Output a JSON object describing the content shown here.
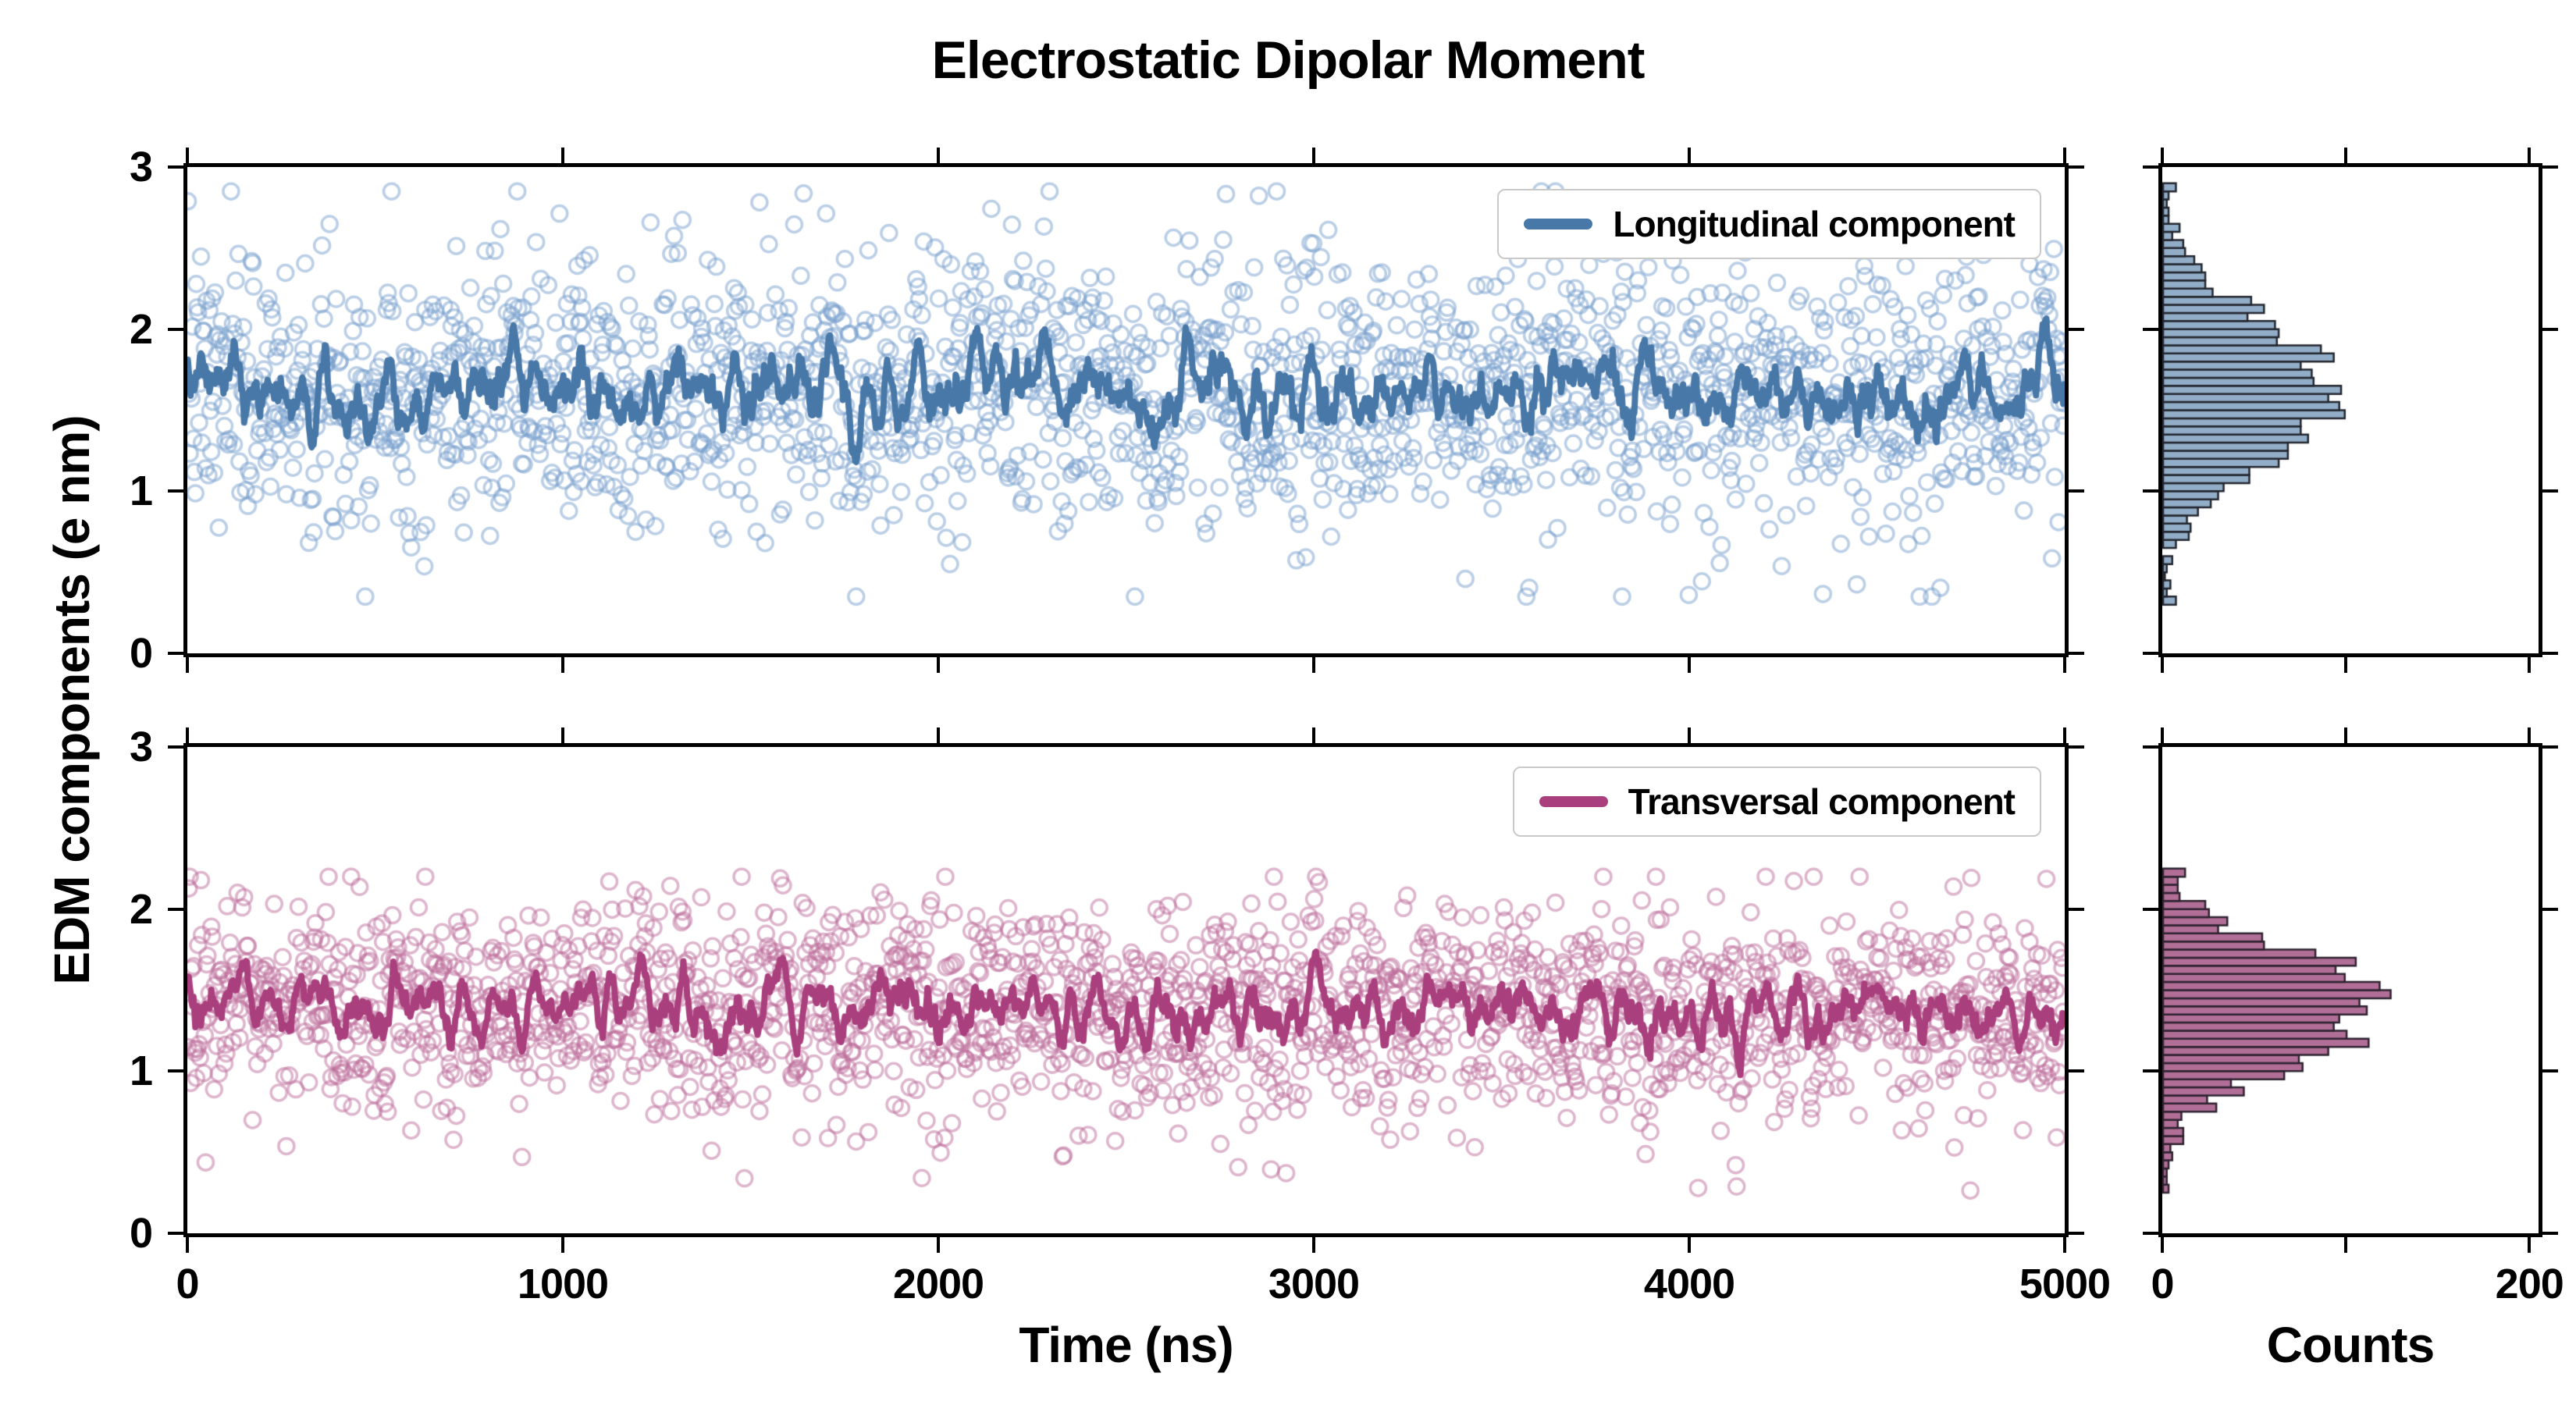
{
  "chart_data": {
    "type": "multi-panel",
    "title": "Electrostatic Dipolar Moment",
    "ylabel": "EDM components (e nm)",
    "xlabel_time": "Time (ns)",
    "xlabel_counts": "Counts",
    "background": "#ffffff",
    "panels": [
      {
        "id": "longitudinal",
        "row": 0,
        "type": "scatter",
        "legend": {
          "label": "Longitudinal component",
          "position": "upper right"
        },
        "x": {
          "lim": [
            0,
            5000
          ],
          "ticks": [
            0,
            1000,
            2000,
            3000,
            4000,
            5000
          ],
          "tick_labels": [
            "0",
            "1000",
            "2000",
            "3000",
            "4000",
            "5000"
          ],
          "show_tick_labels": false
        },
        "y": {
          "lim": [
            0,
            3
          ],
          "ticks": [
            0,
            1,
            2,
            3
          ],
          "tick_labels": [
            "0",
            "1",
            "2",
            "3"
          ]
        },
        "scatter": {
          "marker": "open-circle",
          "n": 2000,
          "mean": 1.63,
          "std": 0.42,
          "clip_min": 0.35,
          "clip_max": 2.85,
          "seed": 7,
          "color": "#78a0cd",
          "alpha": 0.5
        },
        "line": {
          "kind": "running-mean",
          "window": 11,
          "color": "#4878a8"
        },
        "histogram": {
          "orientation": "horizontal",
          "bin_width": 0.05,
          "range": [
            0,
            3
          ],
          "counts_lim": [
            0,
            205
          ],
          "counts_ticks": [
            0,
            100,
            200
          ],
          "counts_tick_labels": [
            "0",
            "",
            "200"
          ],
          "show_tick_labels": false,
          "peak_counts": 95,
          "fill": "#8ca9c4",
          "edge": "#23262e"
        }
      },
      {
        "id": "transversal",
        "row": 1,
        "type": "scatter",
        "legend": {
          "label": "Transversal component",
          "position": "upper right"
        },
        "x": {
          "lim": [
            0,
            5000
          ],
          "ticks": [
            0,
            1000,
            2000,
            3000,
            4000,
            5000
          ],
          "tick_labels": [
            "0",
            "1000",
            "2000",
            "3000",
            "4000",
            "5000"
          ],
          "show_tick_labels": true
        },
        "y": {
          "lim": [
            0,
            3
          ],
          "ticks": [
            0,
            1,
            2,
            3
          ],
          "tick_labels": [
            "0",
            "1",
            "2",
            "3"
          ]
        },
        "scatter": {
          "marker": "open-circle",
          "n": 2000,
          "mean": 1.38,
          "std": 0.34,
          "clip_min": 0.25,
          "clip_max": 2.2,
          "seed": 13,
          "color": "#be6e9b",
          "alpha": 0.5
        },
        "line": {
          "kind": "running-mean",
          "window": 11,
          "color": "#aa3f7d"
        },
        "histogram": {
          "orientation": "horizontal",
          "bin_width": 0.05,
          "range": [
            0,
            3
          ],
          "counts_lim": [
            0,
            205
          ],
          "counts_ticks": [
            0,
            100,
            200
          ],
          "counts_tick_labels": [
            "0",
            "",
            "200"
          ],
          "show_tick_labels": true,
          "peak_counts": 114,
          "fill": "#ad6690",
          "edge": "#2e2330"
        }
      }
    ]
  }
}
